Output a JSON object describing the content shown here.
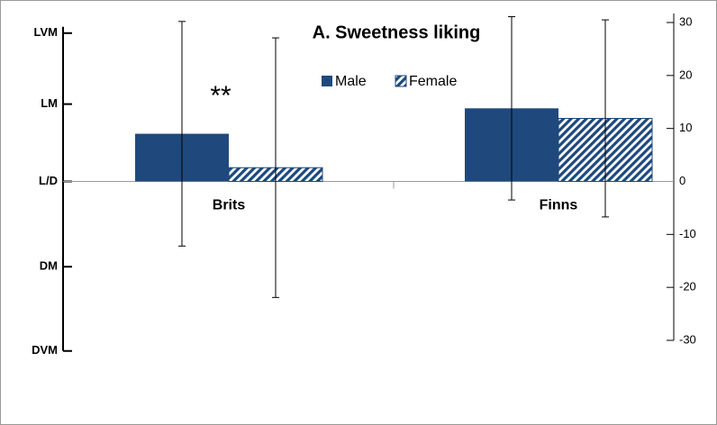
{
  "chart_data": {
    "type": "bar",
    "title": "A. Sweetness liking",
    "annotations": [
      "**"
    ],
    "categories": [
      "Brits",
      "Finns"
    ],
    "series": [
      {
        "name": "Male",
        "color": "#1f497d",
        "values": [
          9,
          13.8
        ],
        "errors": [
          21.2,
          17.3
        ]
      },
      {
        "name": "Female",
        "color": "#1f497d",
        "pattern": "hatch",
        "values": [
          2.6,
          11.9
        ],
        "errors": [
          24.5,
          18.6
        ]
      }
    ],
    "ylim": [
      -30,
      30
    ],
    "y2lim": [
      -30,
      30
    ],
    "y2ticks": [
      30,
      20,
      10,
      0,
      -10,
      -20,
      -30
    ],
    "yticks": [
      {
        "value": 28,
        "label": "LVM"
      },
      {
        "value": 14.6,
        "label": "LM"
      },
      {
        "value": 0,
        "label": "L/D"
      },
      {
        "value": -16.1,
        "label": "DM"
      },
      {
        "value": -32,
        "label": "DVM"
      }
    ],
    "legend": "top"
  }
}
